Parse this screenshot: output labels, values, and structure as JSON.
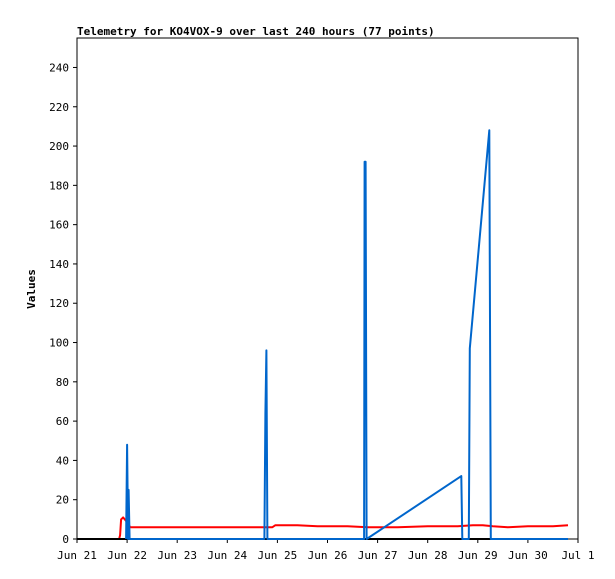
{
  "chart_data": {
    "type": "line",
    "title": "Telemetry for KO4VOX-9 over last 240 hours (77 points)",
    "ylabel": "Values",
    "xlabel": "",
    "xlim": [
      0,
      10
    ],
    "ylim": [
      0,
      255
    ],
    "grid": false,
    "x_ticks": [
      {
        "x": 0,
        "label": "Jun 21"
      },
      {
        "x": 1,
        "label": "Jun 22"
      },
      {
        "x": 2,
        "label": "Jun 23"
      },
      {
        "x": 3,
        "label": "Jun 24"
      },
      {
        "x": 4,
        "label": "Jun 25"
      },
      {
        "x": 5,
        "label": "Jun 26"
      },
      {
        "x": 6,
        "label": "Jun 27"
      },
      {
        "x": 7,
        "label": "Jun 28"
      },
      {
        "x": 8,
        "label": "Jun 29"
      },
      {
        "x": 9,
        "label": "Jun 30"
      },
      {
        "x": 10,
        "label": "Jul 1"
      }
    ],
    "y_ticks": [
      0,
      20,
      40,
      60,
      80,
      100,
      120,
      140,
      160,
      180,
      200,
      220,
      240
    ],
    "series": [
      {
        "color": "#ff0000",
        "points": [
          [
            0.84,
            0
          ],
          [
            0.86,
            2
          ],
          [
            0.88,
            10
          ],
          [
            0.92,
            11
          ],
          [
            1.02,
            8
          ],
          [
            1.06,
            6
          ],
          [
            2.5,
            6
          ],
          [
            3.5,
            6
          ],
          [
            3.9,
            6
          ],
          [
            3.96,
            7
          ],
          [
            4.4,
            7
          ],
          [
            4.8,
            6.5
          ],
          [
            5.4,
            6.5
          ],
          [
            5.8,
            6
          ],
          [
            6.4,
            6
          ],
          [
            7.0,
            6.5
          ],
          [
            7.6,
            6.5
          ],
          [
            7.9,
            7
          ],
          [
            8.1,
            7
          ],
          [
            8.3,
            6.5
          ],
          [
            8.6,
            6
          ],
          [
            9.0,
            6.5
          ],
          [
            9.5,
            6.5
          ],
          [
            9.8,
            7
          ]
        ]
      },
      {
        "color": "#000000",
        "points": [
          [
            0.0,
            0
          ],
          [
            9.8,
            0
          ]
        ]
      },
      {
        "color": "#0066cc",
        "points": [
          [
            0.98,
            0
          ],
          [
            1.0,
            48
          ],
          [
            1.02,
            0
          ],
          [
            1.03,
            25
          ],
          [
            1.05,
            0
          ],
          [
            3.0,
            0
          ],
          [
            3.74,
            0
          ],
          [
            3.76,
            64
          ],
          [
            3.78,
            96
          ],
          [
            3.8,
            0
          ],
          [
            5.73,
            0
          ],
          [
            5.74,
            192
          ],
          [
            5.76,
            192
          ],
          [
            5.78,
            0
          ],
          [
            7.67,
            32
          ],
          [
            7.69,
            0
          ],
          [
            7.82,
            0
          ],
          [
            7.84,
            97
          ],
          [
            8.23,
            208
          ],
          [
            8.26,
            0
          ],
          [
            9.8,
            0
          ]
        ]
      }
    ]
  }
}
